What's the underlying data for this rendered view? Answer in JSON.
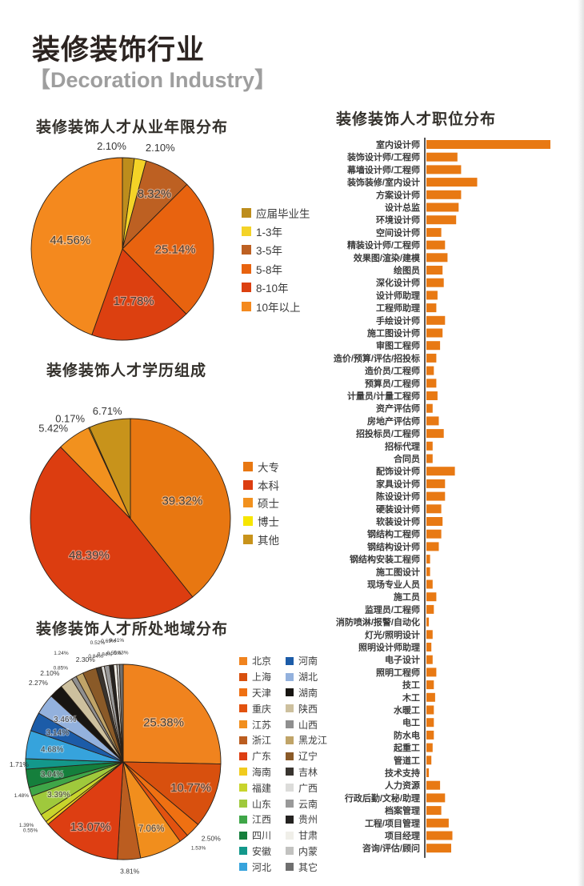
{
  "page": {
    "title": "装修装饰行业",
    "subtitle": "【Decoration Industry】",
    "accent_color": "#e87913"
  },
  "chart_data": [
    {
      "type": "pie",
      "title": "装修装饰人才从业年限分布",
      "legend_position": "right",
      "slices": [
        {
          "label": "应届毕业生",
          "value": 2.1,
          "color": "#bd8d1c"
        },
        {
          "label": "1-3年",
          "value": 2.1,
          "color": "#f4d327"
        },
        {
          "label": "3-5年",
          "value": 8.32,
          "color": "#bd6022"
        },
        {
          "label": "5-8年",
          "value": 25.14,
          "color": "#e8630f"
        },
        {
          "label": "8-10年",
          "value": 17.78,
          "color": "#dc4010"
        },
        {
          "label": "10年以上",
          "value": 44.56,
          "color": "#f4891e"
        }
      ]
    },
    {
      "type": "pie",
      "title": "装修装饰人才学历组成",
      "legend_position": "right",
      "slices": [
        {
          "label": "大专",
          "value": 39.32,
          "color": "#e87711"
        },
        {
          "label": "本科",
          "value": 48.39,
          "color": "#dc3d10"
        },
        {
          "label": "硕士",
          "value": 5.42,
          "color": "#f2911e"
        },
        {
          "label": "博士",
          "value": 0.17,
          "color": "#f7e600"
        },
        {
          "label": "其他",
          "value": 6.71,
          "color": "#c8931b"
        }
      ]
    },
    {
      "type": "pie",
      "title": "装修装饰人才所处地域分布",
      "legend_position": "right",
      "legend_columns": 2,
      "slices": [
        {
          "label": "北京",
          "value": 25.38,
          "color": "#f0831e"
        },
        {
          "label": "上海",
          "value": 10.77,
          "color": "#d8500e"
        },
        {
          "label": "天津",
          "value": 2.5,
          "color": "#ef7012"
        },
        {
          "label": "重庆",
          "value": 1.53,
          "color": "#e2520f"
        },
        {
          "label": "江苏",
          "value": 7.06,
          "color": "#f18e1d"
        },
        {
          "label": "浙江",
          "value": 3.81,
          "color": "#bb5d20"
        },
        {
          "label": "广东",
          "value": 13.07,
          "color": "#dd3e12"
        },
        {
          "label": "海南",
          "value": 0.55,
          "color": "#f1cb1e"
        },
        {
          "label": "福建",
          "value": 1.39,
          "color": "#c8d42c"
        },
        {
          "label": "山东",
          "value": 3.39,
          "color": "#9fc93c"
        },
        {
          "label": "江西",
          "value": 1.48,
          "color": "#3fa648"
        },
        {
          "label": "四川",
          "value": 3.04,
          "color": "#157f3c"
        },
        {
          "label": "安徽",
          "value": 1.71,
          "color": "#13988b"
        },
        {
          "label": "河北",
          "value": 4.68,
          "color": "#36a3dc"
        },
        {
          "label": "河南",
          "value": 3.14,
          "color": "#1c5ca8"
        },
        {
          "label": "湖北",
          "value": 3.46,
          "color": "#93b1dd"
        },
        {
          "label": "湖南",
          "value": 2.27,
          "color": "#181512"
        },
        {
          "label": "陕西",
          "value": 2.1,
          "color": "#cdc09e"
        },
        {
          "label": "山西",
          "value": 0.85,
          "color": "#8f8f8f"
        },
        {
          "label": "黑龙江",
          "value": 1.24,
          "color": "#c0a468"
        },
        {
          "label": "辽宁",
          "value": 2.3,
          "color": "#8a5a28"
        },
        {
          "label": "吉林",
          "value": 0.84,
          "color": "#39342f"
        },
        {
          "label": "广西",
          "value": 0.52,
          "color": "#dcdcda"
        },
        {
          "label": "云南",
          "value": 0.84,
          "color": "#999999"
        },
        {
          "label": "贵州",
          "value": 0.69,
          "color": "#242220"
        },
        {
          "label": "甘肃",
          "value": 0.55,
          "color": "#f0efe9"
        },
        {
          "label": "内蒙",
          "value": 0.41,
          "color": "#c2c2c0"
        },
        {
          "label": "其它",
          "value": 0.63,
          "color": "#6f6f6f"
        }
      ]
    },
    {
      "type": "bar",
      "orientation": "horizontal",
      "title": "装修装饰人才职位分布",
      "bar_color": "#e87913",
      "value_note": "relative bar lengths, longest bar = 100; no numeric axis shown in image",
      "categories": [
        "室内设计师",
        "装饰设计师/工程师",
        "幕墙设计师/工程师",
        "装饰装修/室内设计",
        "方案设计师",
        "设计总监",
        "环境设计师",
        "空间设计师",
        "精装设计师/工程师",
        "效果图/渲染/建模",
        "绘图员",
        "深化设计师",
        "设计师助理",
        "工程师助理",
        "手绘设计师",
        "施工图设计师",
        "审图工程师",
        "造价/预算/评估/招投标",
        "造价员/工程师",
        "预算员/工程师",
        "计量员/计量工程师",
        "资产评估师",
        "房地产评估师",
        "招投标员/工程师",
        "招标代理",
        "合同员",
        "配饰设计师",
        "家具设计师",
        "陈设设计师",
        "硬装设计师",
        "软装设计师",
        "钢结构工程师",
        "钢结构设计师",
        "钢结构安装工程师",
        "施工图设计",
        "现场专业人员",
        "施工员",
        "监理员/工程师",
        "消防喷淋/报警/自动化",
        "灯光/照明设计",
        "照明设计师助理",
        "电子设计",
        "照明工程师",
        "技工",
        "木工",
        "水暖工",
        "电工",
        "防水电",
        "起重工",
        "管道工",
        "技术支持",
        "人力资源",
        "行政后勤/文秘/助理",
        "档案管理",
        "工程/项目管理",
        "项目经理",
        "咨询/评估/顾问"
      ],
      "values": [
        100,
        25,
        28,
        41,
        28,
        26,
        24,
        12,
        15,
        17,
        13,
        14,
        9,
        8,
        15,
        13,
        11,
        8,
        6,
        8,
        9,
        5,
        10,
        14,
        5,
        5,
        23,
        15,
        15,
        12,
        13,
        12,
        10,
        3,
        3,
        5,
        8,
        6,
        2,
        5,
        4,
        5,
        8,
        6,
        7,
        6,
        6,
        6,
        5,
        4,
        2,
        11,
        15,
        12,
        18,
        21,
        20
      ]
    }
  ]
}
